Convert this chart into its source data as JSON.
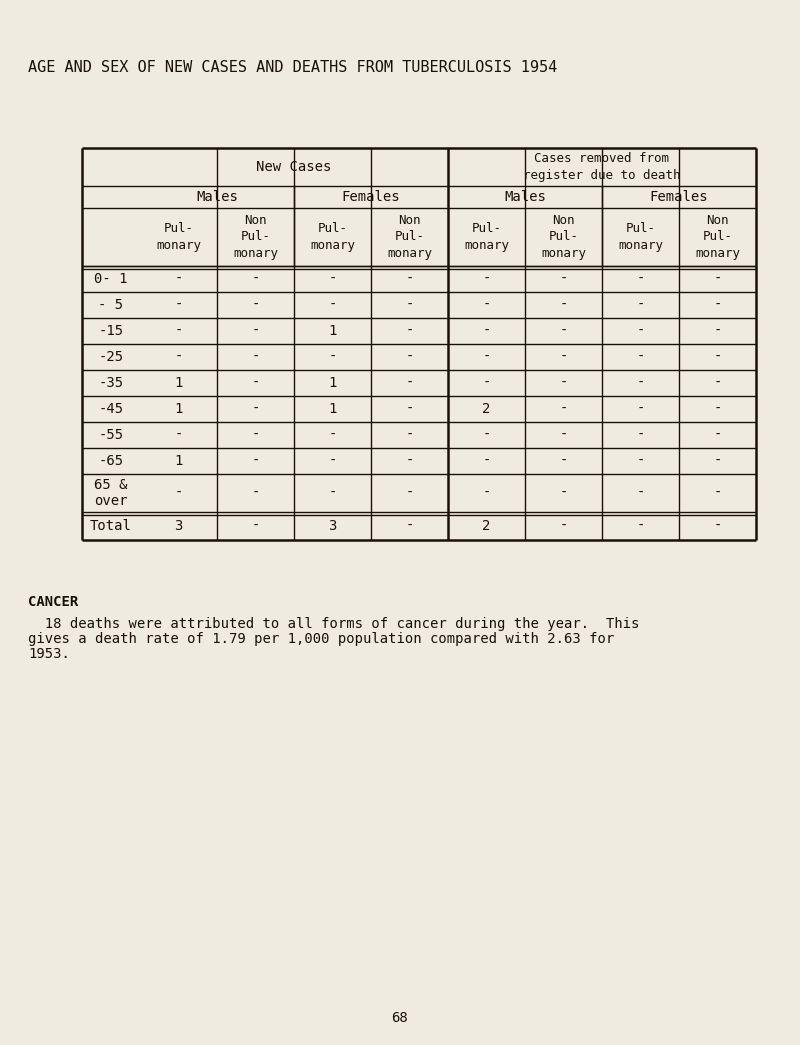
{
  "title": "AGE AND SEX OF NEW CASES AND DEATHS FROM TUBERCULOSIS 1954",
  "background_color": "#f0ebe0",
  "text_color": "#1a1008",
  "age_groups": [
    "0- 1",
    "- 5",
    "-15",
    "-25",
    "-35",
    "-45",
    "-55",
    "-65",
    "65 &\nover",
    "Total"
  ],
  "col1": [
    "-",
    "-",
    "-",
    "-",
    "1",
    "1",
    "-",
    "1",
    "-",
    "3"
  ],
  "col2": [
    "-",
    "-",
    "-",
    "-",
    "-",
    "-",
    "-",
    "-",
    "-",
    "-"
  ],
  "col3": [
    "-",
    "-",
    "1",
    "-",
    "1",
    "1",
    "-",
    "-",
    "-",
    "3"
  ],
  "col4": [
    "-",
    "-",
    "-",
    "-",
    "-",
    "-",
    "-",
    "-",
    "-",
    "-"
  ],
  "col5": [
    "-",
    "-",
    "-",
    "-",
    "-",
    "2",
    "-",
    "-",
    "-",
    "2"
  ],
  "col6": [
    "-",
    "-",
    "-",
    "-",
    "-",
    "-",
    "-",
    "-",
    "-",
    "-"
  ],
  "col7": [
    "-",
    "-",
    "-",
    "-",
    "-",
    "-",
    "-",
    "-",
    "-",
    "-"
  ],
  "col8": [
    "-",
    "-",
    "-",
    "-",
    "-",
    "-",
    "-",
    "-",
    "-",
    "-"
  ],
  "cancer_heading": "CANCER",
  "cancer_line1": "  18 deaths were attributed to all forms of cancer during the year.  This",
  "cancer_line2": "gives a death rate of 1.79 per 1,000 population compared with 2.63 for",
  "cancer_line3": "1953.",
  "page_number": "68"
}
